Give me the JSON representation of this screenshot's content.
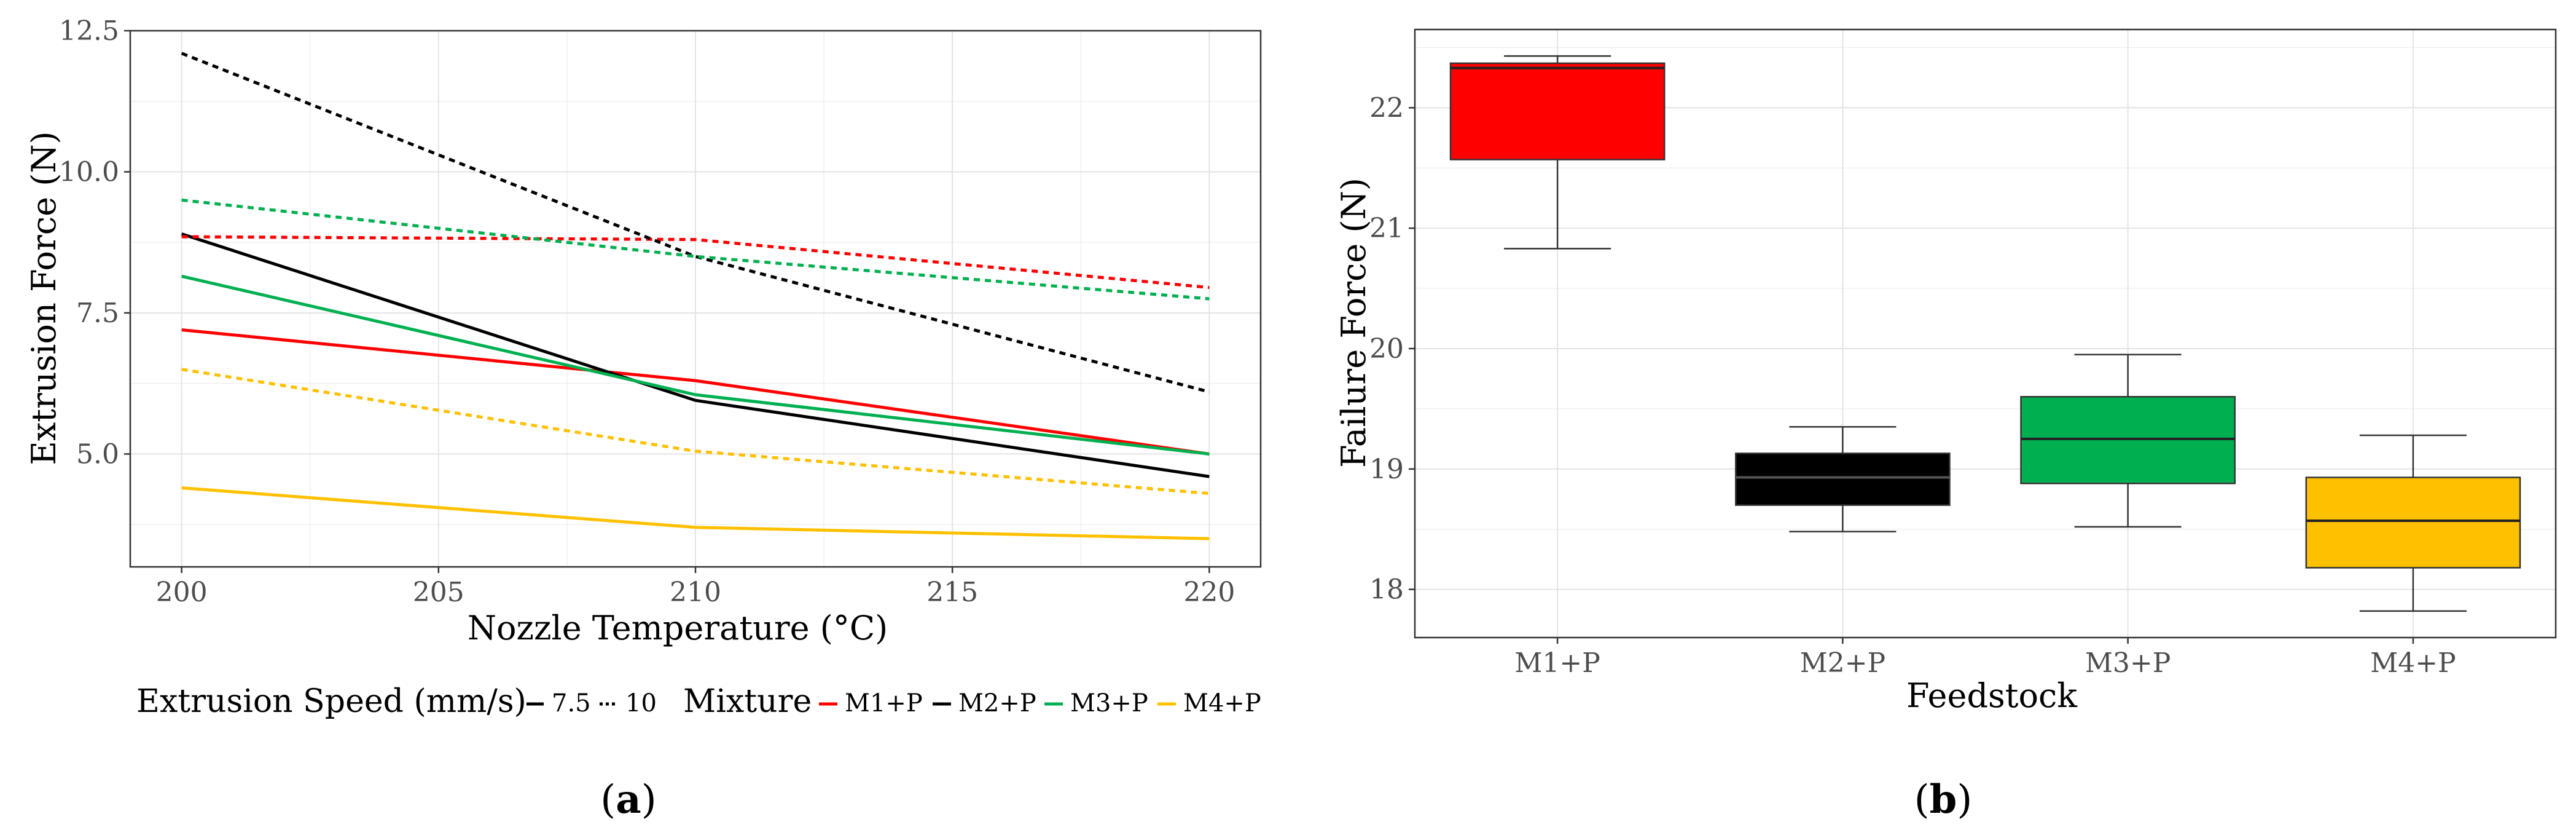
{
  "chart_data": [
    {
      "panel_label_letter": "a",
      "panel_label_open": "(",
      "panel_label_close": ")",
      "type": "line",
      "xlabel": "Nozzle Temperature (°C)",
      "ylabel": "Extrusion Force (N)",
      "x": [
        200,
        210,
        220
      ],
      "xticks": [
        "200",
        "205",
        "210",
        "215",
        "220"
      ],
      "xlim": [
        199,
        221
      ],
      "yticks": [
        "5.0",
        "7.5",
        "10.0",
        "12.5"
      ],
      "ylim": [
        3.0,
        12.5
      ],
      "grid": true,
      "legend_position": "bottom",
      "legend": {
        "speed_title": "Extrusion Speed (mm/s)",
        "speed_items": [
          "7.5",
          "10"
        ],
        "mixture_title": "Mixture",
        "mixture_items": [
          "M1+P",
          "M2+P",
          "M3+P",
          "M4+P"
        ]
      },
      "colors": {
        "M1+P": "#ff0000",
        "M2+P": "#000000",
        "M3+P": "#00b050",
        "M4+P": "#ffc000"
      },
      "series": [
        {
          "mixture": "M1+P",
          "speed": "7.5",
          "values": [
            7.2,
            6.3,
            5.0
          ]
        },
        {
          "mixture": "M2+P",
          "speed": "7.5",
          "values": [
            8.9,
            5.95,
            4.6
          ]
        },
        {
          "mixture": "M3+P",
          "speed": "7.5",
          "values": [
            8.15,
            6.05,
            5.0
          ]
        },
        {
          "mixture": "M4+P",
          "speed": "7.5",
          "values": [
            4.4,
            3.7,
            3.5
          ]
        },
        {
          "mixture": "M1+P",
          "speed": "10",
          "values": [
            8.85,
            8.8,
            7.95
          ]
        },
        {
          "mixture": "M2+P",
          "speed": "10",
          "values": [
            12.1,
            8.5,
            6.1
          ]
        },
        {
          "mixture": "M3+P",
          "speed": "10",
          "values": [
            9.5,
            8.5,
            7.75
          ]
        },
        {
          "mixture": "M4+P",
          "speed": "10",
          "values": [
            6.5,
            5.05,
            4.3
          ]
        }
      ]
    },
    {
      "panel_label_letter": "b",
      "panel_label_open": "(",
      "panel_label_close": ")",
      "type": "box",
      "xlabel": "Feedstock",
      "ylabel": "Failure Force (N)",
      "categories": [
        "M1+P",
        "M2+P",
        "M3+P",
        "M4+P"
      ],
      "yticks": [
        "18",
        "19",
        "20",
        "21",
        "22"
      ],
      "ylim": [
        17.6,
        22.65
      ],
      "grid": true,
      "boxes": [
        {
          "name": "M1+P",
          "color": "#ff0000",
          "min": 20.83,
          "q1": 21.57,
          "median": 22.33,
          "q3": 22.37,
          "max": 22.43
        },
        {
          "name": "M2+P",
          "color": "#000000",
          "min": 18.48,
          "q1": 18.7,
          "median": 18.93,
          "q3": 19.13,
          "max": 19.35
        },
        {
          "name": "M3+P",
          "color": "#00b050",
          "min": 18.52,
          "q1": 18.88,
          "median": 19.25,
          "q3": 19.6,
          "max": 19.95
        },
        {
          "name": "M4+P",
          "color": "#ffc000",
          "min": 17.82,
          "q1": 18.18,
          "median": 18.57,
          "q3": 18.93,
          "max": 19.28
        }
      ]
    }
  ]
}
